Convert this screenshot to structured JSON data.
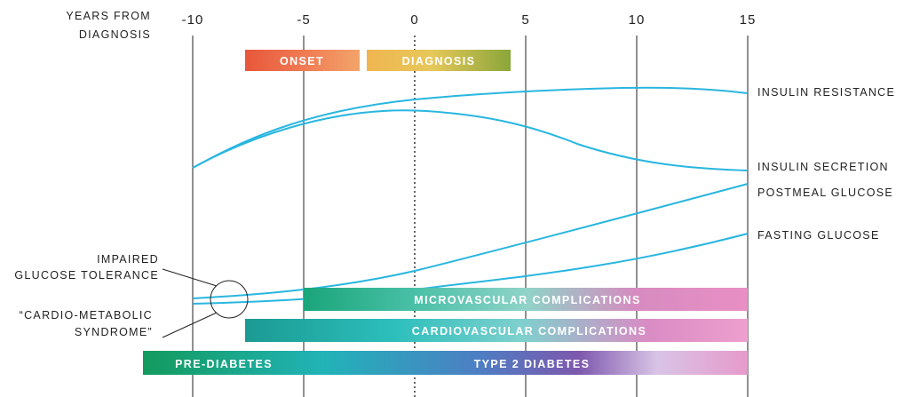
{
  "axis": {
    "title_line1": "YEARS FROM",
    "title_line2": "DIAGNOSIS",
    "ticks": [
      "-10",
      "-5",
      "0",
      "5",
      "10",
      "15"
    ]
  },
  "phases": {
    "onset": "ONSET",
    "diagnosis": "DIAGNOSIS"
  },
  "curves": {
    "insulin_resistance": "INSULIN RESISTANCE",
    "insulin_secretion": "INSULIN SECRETION",
    "postmeal_glucose": "POSTMEAL GLUCOSE",
    "fasting_glucose": "FASTING GLUCOSE"
  },
  "callouts": {
    "igt_line1": "IMPAIRED",
    "igt_line2": "GLUCOSE TOLERANCE",
    "cms_line1": "“CARDIO-METABOLIC",
    "cms_line2": "SYNDROME”"
  },
  "bars": {
    "microvascular": "MICROVASCULAR COMPLICATIONS",
    "cardiovascular": "CARDIOVASCULAR COMPLICATIONS",
    "prediabetes": "PRE-DIABETES",
    "type2": "TYPE 2 DIABETES"
  },
  "colors": {
    "curve": "#29b6e0",
    "gridline": "#222222"
  }
}
